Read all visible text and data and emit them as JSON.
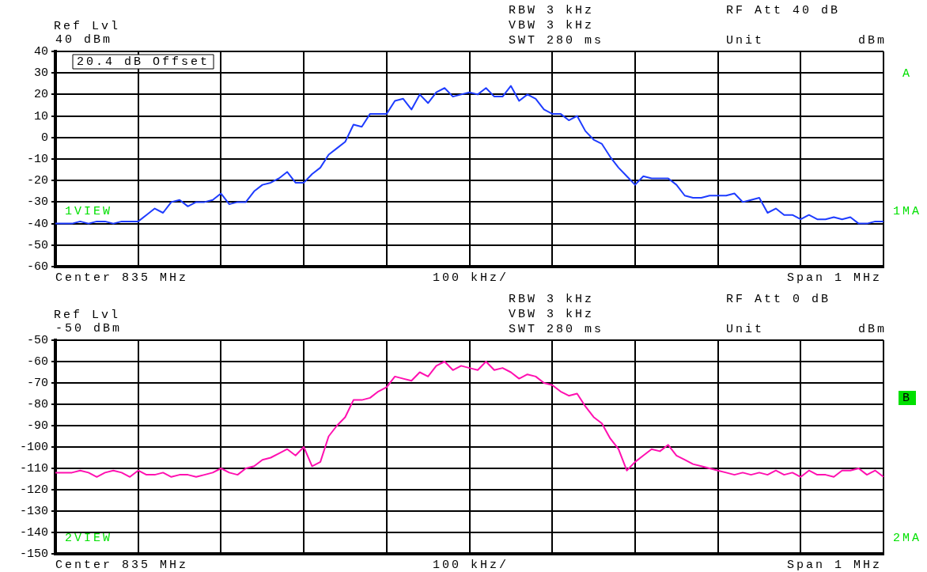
{
  "chart_data": [
    {
      "type": "line",
      "annotations": [
        "Ref Lvl",
        "40 dBm",
        "RBW 3 kHz",
        "VBW 3 kHz",
        "SWT 280 ms",
        "RF Att 40 dB",
        "Unit",
        "dBm",
        "A",
        "1VIEW",
        "1MA",
        "Center 835 MHz",
        "100 kHz/",
        "Span 1 MHz",
        "20.4 dB Offset"
      ],
      "categories": [
        null,
        null,
        null,
        null,
        null,
        null,
        null,
        null,
        null,
        null,
        null,
        null,
        null,
        null,
        null,
        null,
        null,
        null,
        null,
        null,
        null,
        null,
        null,
        null,
        null,
        null,
        null,
        null,
        null,
        null,
        null,
        null,
        null,
        null,
        null,
        null,
        null,
        null,
        null,
        null,
        null,
        null,
        null,
        null,
        null,
        null,
        null,
        null,
        null,
        null,
        null,
        null,
        null,
        null,
        null,
        null,
        null,
        null,
        null,
        null,
        null,
        null,
        null,
        null,
        null,
        null,
        null,
        null,
        null,
        null,
        null,
        null,
        null,
        null,
        null,
        null,
        null,
        null,
        null,
        null,
        null,
        null,
        null,
        null,
        null,
        null,
        null,
        null,
        null,
        null,
        null,
        null,
        null,
        null,
        null,
        null,
        null,
        null,
        null,
        null,
        null
      ],
      "series": [
        {
          "color": "#1e3cff",
          "values": [
            -40,
            -40,
            -40,
            -39,
            -40,
            -39,
            -39,
            -40,
            -39,
            -39,
            -39,
            -36,
            -33,
            -35,
            -30,
            -29,
            -32,
            -30,
            -30,
            -29,
            -26,
            -31,
            -30,
            -30,
            -25,
            -22,
            -21,
            -19,
            -16,
            -21,
            -21,
            -17,
            -14,
            -8,
            -5,
            -2,
            6,
            5,
            11,
            11,
            11,
            17,
            18,
            13,
            20,
            16,
            21,
            23,
            19,
            20,
            21,
            20,
            23,
            19,
            19,
            24,
            17,
            20,
            18,
            13,
            11,
            11,
            8,
            10,
            3,
            -1,
            -3,
            -9,
            -14,
            -18,
            -22,
            -18,
            -19,
            -19,
            -19,
            -22,
            -27,
            -28,
            -28,
            -27,
            -27,
            -27,
            -26,
            -30,
            -29,
            -28,
            -35,
            -33,
            -36,
            -36,
            -38,
            -36,
            -38,
            -38,
            -37,
            -38,
            -37,
            -40,
            -40,
            -39,
            -39
          ]
        }
      ],
      "ylim": [
        -60,
        40
      ],
      "yticks": [
        -60,
        -50,
        -40,
        -30,
        -20,
        -10,
        0,
        10,
        20,
        30,
        40
      ],
      "grid": true,
      "legend": false,
      "marker": "none",
      "tick_labels": "y"
    },
    {
      "type": "line",
      "annotations": [
        "Ref Lvl",
        "-50 dBm",
        "RBW 3 kHz",
        "VBW 3 kHz",
        "SWT 280 ms",
        "RF Att 0 dB",
        "Unit",
        "dBm",
        "B",
        "2VIEW",
        "2MA",
        "Center 835 MHz",
        "100 kHz/",
        "Span 1 MHz"
      ],
      "categories": [
        null,
        null,
        null,
        null,
        null,
        null,
        null,
        null,
        null,
        null,
        null,
        null,
        null,
        null,
        null,
        null,
        null,
        null,
        null,
        null,
        null,
        null,
        null,
        null,
        null,
        null,
        null,
        null,
        null,
        null,
        null,
        null,
        null,
        null,
        null,
        null,
        null,
        null,
        null,
        null,
        null,
        null,
        null,
        null,
        null,
        null,
        null,
        null,
        null,
        null,
        null,
        null,
        null,
        null,
        null,
        null,
        null,
        null,
        null,
        null,
        null,
        null,
        null,
        null,
        null,
        null,
        null,
        null,
        null,
        null,
        null,
        null,
        null,
        null,
        null,
        null,
        null,
        null,
        null,
        null,
        null,
        null,
        null,
        null,
        null,
        null,
        null,
        null,
        null,
        null,
        null,
        null,
        null,
        null,
        null,
        null,
        null,
        null,
        null,
        null,
        null
      ],
      "series": [
        {
          "color": "#ff10b0",
          "values": [
            -112,
            -112,
            -112,
            -111,
            -112,
            -114,
            -112,
            -111,
            -112,
            -114,
            -111,
            -113,
            -113,
            -112,
            -114,
            -113,
            -113,
            -114,
            -113,
            -112,
            -110,
            -112,
            -113,
            -110,
            -109,
            -106,
            -105,
            -103,
            -101,
            -104,
            -100,
            -109,
            -107,
            -95,
            -90,
            -86,
            -78,
            -78,
            -77,
            -74,
            -72,
            -67,
            -68,
            -69,
            -65,
            -67,
            -62,
            -60,
            -64,
            -62,
            -63,
            -64,
            -60,
            -64,
            -63,
            -65,
            -68,
            -66,
            -67,
            -70,
            -71,
            -74,
            -76,
            -75,
            -81,
            -86,
            -89,
            -96,
            -101,
            -111,
            -107,
            -104,
            -101,
            -102,
            -99,
            -104,
            -106,
            -108,
            -109,
            -110,
            -111,
            -112,
            -113,
            -112,
            -113,
            -112,
            -113,
            -111,
            -113,
            -112,
            -114,
            -111,
            -113,
            -113,
            -114,
            -111,
            -111,
            -110,
            -113,
            -111,
            -114
          ]
        }
      ],
      "ylim": [
        -150,
        -50
      ],
      "yticks": [
        -150,
        -140,
        -130,
        -120,
        -110,
        -100,
        -90,
        -80,
        -70,
        -60,
        -50
      ],
      "grid": true,
      "legend": false,
      "marker": "none",
      "tick_labels": "y"
    }
  ]
}
